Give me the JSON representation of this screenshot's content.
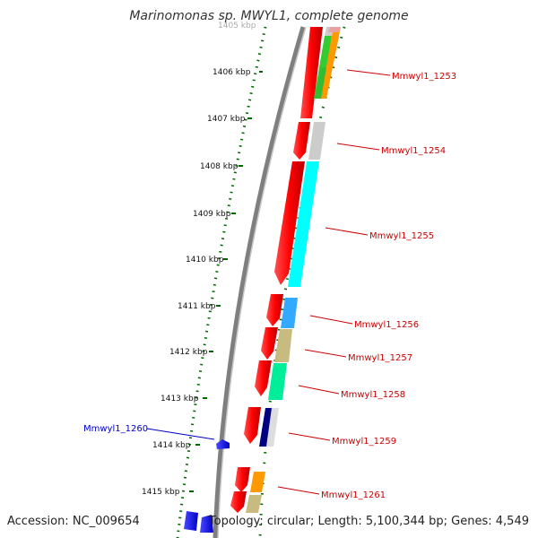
{
  "title": "Marinomonas sp. MWYL1, complete genome",
  "footer": {
    "accession": "Accession: NC_009654",
    "topology": "Topology: circular; Length: 5,100,344 bp; Genes: 4,549"
  },
  "ruler": {
    "labels": [
      "1405 kbp",
      "1406 kbp",
      "1407 kbp",
      "1408 kbp",
      "1409 kbp",
      "1410 kbp",
      "1411 kbp",
      "1412 kbp",
      "1413 kbp",
      "1414 kbp",
      "1415 kbp"
    ]
  },
  "genes": [
    {
      "label": "Mmwyl1_1253",
      "color": "#cc0000"
    },
    {
      "label": "Mmwyl1_1254",
      "color": "#cc0000"
    },
    {
      "label": "Mmwyl1_1255",
      "color": "#cc0000"
    },
    {
      "label": "Mmwyl1_1256",
      "color": "#cc0000"
    },
    {
      "label": "Mmwyl1_1257",
      "color": "#cc0000"
    },
    {
      "label": "Mmwyl1_1258",
      "color": "#cc0000"
    },
    {
      "label": "Mmwyl1_1259",
      "color": "#cc0000"
    },
    {
      "label": "Mmwyl1_1260",
      "color": "#0000cc"
    },
    {
      "label": "Mmwyl1_1261",
      "color": "#cc0000"
    }
  ],
  "colors": {
    "forward_strand": "#ff0000",
    "reverse_strand": "#0000ee",
    "backbone": "#888888",
    "ruler_dots": "#006600"
  }
}
